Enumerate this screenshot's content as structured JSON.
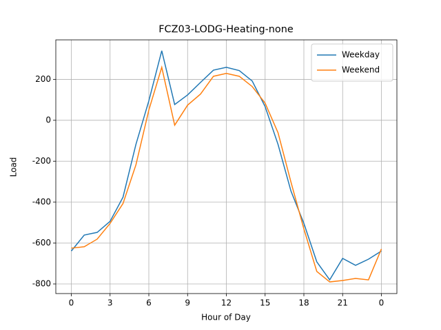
{
  "chart_data": {
    "type": "line",
    "title": "FCZ03-LODG-Heating-none",
    "x_label": "Hour of Day",
    "y_label": "Load",
    "x": [
      0,
      1,
      2,
      3,
      4,
      5,
      6,
      7,
      8,
      9,
      10,
      11,
      12,
      13,
      14,
      15,
      16,
      17,
      18,
      19,
      20,
      21,
      22,
      23,
      24
    ],
    "series": [
      {
        "name": "Weekday",
        "color": "#1f77b4",
        "values": [
          -639,
          -561,
          -548,
          -494,
          -376,
          -118,
          95,
          340,
          77,
          124,
          185,
          245,
          259,
          243,
          192,
          67,
          -118,
          -346,
          -504,
          -692,
          -780,
          -675,
          -709,
          -679,
          -639
        ]
      },
      {
        "name": "Weekend",
        "color": "#ff7f0e",
        "values": [
          -625,
          -618,
          -581,
          -504,
          -407,
          -218,
          50,
          259,
          -24,
          74,
          128,
          215,
          229,
          215,
          165,
          84,
          -61,
          -302,
          -531,
          -739,
          -790,
          -783,
          -773,
          -780,
          -629
        ]
      }
    ],
    "xlim": [
      -1.2,
      25.2
    ],
    "ylim": [
      -847,
      393
    ],
    "xticks": [
      0,
      3,
      6,
      9,
      12,
      15,
      18,
      21,
      {
        "value": 24,
        "label": "0"
      }
    ],
    "yticks": [
      -800,
      -600,
      -400,
      -200,
      0,
      200
    ],
    "grid": true,
    "legend": "upper right"
  }
}
